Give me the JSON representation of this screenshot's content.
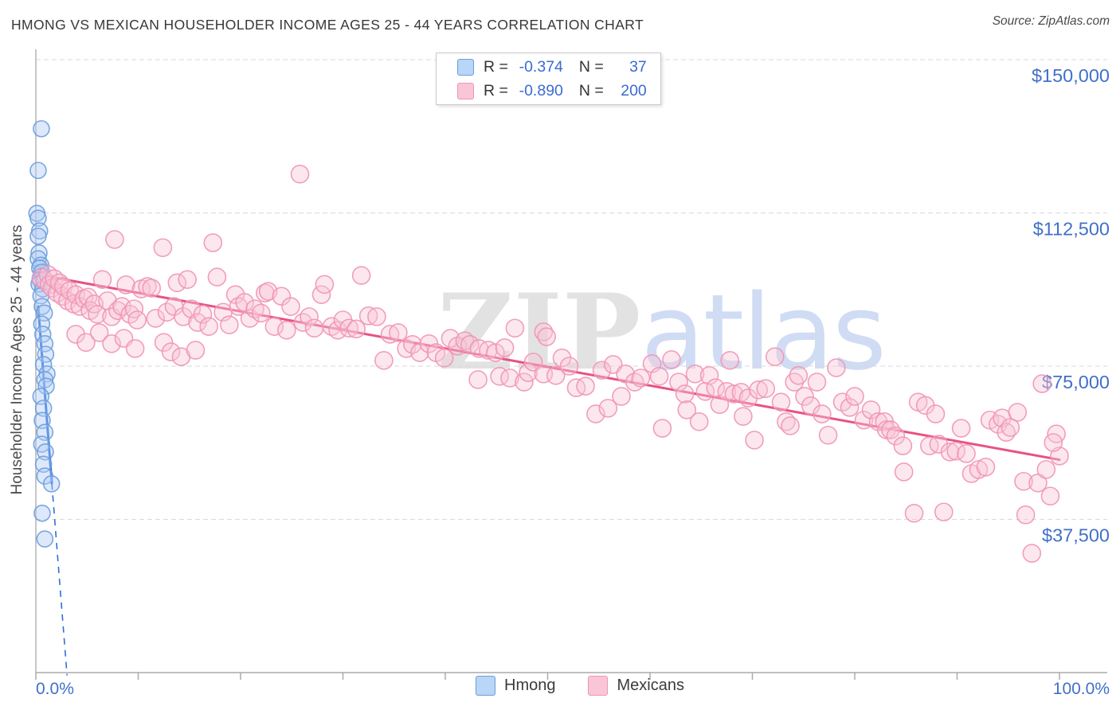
{
  "title": "HMONG VS MEXICAN HOUSEHOLDER INCOME AGES 25 - 44 YEARS CORRELATION CHART",
  "source": "Source: ZipAtlas.com",
  "watermark": {
    "zip": "ZIP",
    "atlas": "atlas"
  },
  "y_axis_title": "Householder Income Ages 25 - 44 years",
  "legend_box": {
    "rows": [
      {
        "series": "Hmong",
        "r_label": "R =",
        "r_value": "-0.374",
        "n_label": "N =",
        "n_value": "37"
      },
      {
        "series": "Mexicans",
        "r_label": "R =",
        "r_value": "-0.890",
        "n_label": "N =",
        "n_value": "200"
      }
    ]
  },
  "bottom_legend": {
    "hmong_label": "Hmong",
    "mexicans_label": "Mexicans"
  },
  "colors": {
    "hmong_fill": "#aecbf5",
    "hmong_stroke": "#6b9ddb",
    "hmong_trend": "#2e6fd8",
    "mexican_fill": "#f7c6d6",
    "mexican_stroke": "#f193b5",
    "mexican_trend": "#e85380",
    "axis_label": "#4170ca",
    "grid": "#d9d9d9",
    "axis_line": "#aaaaaa",
    "text_dark": "#3b3b3b"
  },
  "chart_data": {
    "type": "scatter",
    "title": "HMONG VS MEXICAN HOUSEHOLDER INCOME AGES 25 - 44 YEARS CORRELATION CHART",
    "xlabel_left": "0.0%",
    "xlabel_right": "100.0%",
    "x_ticks_percent": [
      0,
      10,
      20,
      30,
      40,
      50,
      60,
      70,
      80,
      90,
      100
    ],
    "y_gridline_values": [
      150000,
      112500,
      75000,
      37500
    ],
    "y_gridline_labels": [
      "$150,000",
      "$112,500",
      "$75,000",
      "$37,500"
    ],
    "xlim": [
      0,
      104.7
    ],
    "ylim": [
      0,
      152000
    ],
    "grid": true,
    "legend_position": "top-center",
    "series": [
      {
        "name": "Hmong",
        "r": -0.374,
        "n": 37,
        "point_radius": 10,
        "trend": {
          "x1": 0.23,
          "y1": 89600,
          "x2": 1.56,
          "y2": 46300,
          "dash_extension": {
            "x": 3.05,
            "y": -700
          }
        },
        "points": [
          [
            0.54,
            133100
          ],
          [
            0.23,
            122900
          ],
          [
            0.1,
            112400
          ],
          [
            0.23,
            111200
          ],
          [
            0.37,
            108100
          ],
          [
            0.23,
            106800
          ],
          [
            0.31,
            102700
          ],
          [
            0.23,
            101300
          ],
          [
            0.49,
            99700
          ],
          [
            0.37,
            99000
          ],
          [
            0.57,
            98000
          ],
          [
            0.62,
            97000
          ],
          [
            0.41,
            96100
          ],
          [
            0.31,
            95100
          ],
          [
            0.68,
            93900
          ],
          [
            0.49,
            92200
          ],
          [
            0.62,
            89600
          ],
          [
            0.83,
            88000
          ],
          [
            0.57,
            85300
          ],
          [
            0.68,
            82800
          ],
          [
            0.88,
            80500
          ],
          [
            0.96,
            77900
          ],
          [
            0.75,
            75400
          ],
          [
            1.09,
            73100
          ],
          [
            0.88,
            71700
          ],
          [
            1.01,
            70100
          ],
          [
            0.49,
            67600
          ],
          [
            0.75,
            64700
          ],
          [
            0.62,
            61700
          ],
          [
            0.88,
            58800
          ],
          [
            0.57,
            55900
          ],
          [
            0.93,
            54000
          ],
          [
            0.75,
            51000
          ],
          [
            0.88,
            48100
          ],
          [
            1.53,
            46200
          ],
          [
            0.62,
            39000
          ],
          [
            0.88,
            32700
          ]
        ]
      },
      {
        "name": "Mexicans",
        "r": -0.89,
        "n": 200,
        "point_radius": 11,
        "trend": {
          "x1": 0.16,
          "y1": 97400,
          "x2": 100.0,
          "y2": 52100
        },
        "points": [
          [
            0.5,
            96600
          ],
          [
            0.9,
            96000
          ],
          [
            1.2,
            97400
          ],
          [
            1.3,
            94900
          ],
          [
            1.6,
            94100
          ],
          [
            1.8,
            96400
          ],
          [
            2.1,
            92900
          ],
          [
            2.3,
            95400
          ],
          [
            2.6,
            92100
          ],
          [
            2.7,
            94500
          ],
          [
            3.1,
            91000
          ],
          [
            3.3,
            93500
          ],
          [
            3.7,
            90200
          ],
          [
            3.9,
            92500
          ],
          [
            4.3,
            89600
          ],
          [
            4.7,
            91500
          ],
          [
            5.1,
            91900
          ],
          [
            5.3,
            88600
          ],
          [
            5.7,
            90200
          ],
          [
            6.0,
            87700
          ],
          [
            6.5,
            96200
          ],
          [
            7.0,
            91000
          ],
          [
            7.4,
            87100
          ],
          [
            7.7,
            106000
          ],
          [
            8.0,
            88600
          ],
          [
            8.4,
            89600
          ],
          [
            8.8,
            94900
          ],
          [
            9.2,
            87700
          ],
          [
            9.6,
            89000
          ],
          [
            9.9,
            86300
          ],
          [
            10.3,
            93900
          ],
          [
            10.9,
            94500
          ],
          [
            11.3,
            94100
          ],
          [
            11.7,
            86700
          ],
          [
            12.4,
            104000
          ],
          [
            12.8,
            88200
          ],
          [
            13.5,
            89600
          ],
          [
            13.8,
            95400
          ],
          [
            14.4,
            87100
          ],
          [
            14.8,
            96200
          ],
          [
            15.2,
            89000
          ],
          [
            15.8,
            85700
          ],
          [
            16.3,
            87700
          ],
          [
            16.9,
            84700
          ],
          [
            17.3,
            105200
          ],
          [
            17.7,
            96800
          ],
          [
            18.3,
            88200
          ],
          [
            18.9,
            85100
          ],
          [
            19.5,
            92500
          ],
          [
            19.8,
            89600
          ],
          [
            20.4,
            90600
          ],
          [
            20.9,
            86700
          ],
          [
            21.4,
            89000
          ],
          [
            22.0,
            88000
          ],
          [
            22.4,
            92900
          ],
          [
            22.7,
            93300
          ],
          [
            23.3,
            84700
          ],
          [
            24.0,
            92100
          ],
          [
            24.5,
            83800
          ],
          [
            24.9,
            89600
          ],
          [
            25.8,
            122000
          ],
          [
            26.1,
            85700
          ],
          [
            26.7,
            87100
          ],
          [
            27.2,
            84300
          ],
          [
            27.9,
            92500
          ],
          [
            28.2,
            95000
          ],
          [
            28.9,
            84700
          ],
          [
            29.5,
            83800
          ],
          [
            30.0,
            86300
          ],
          [
            30.6,
            84300
          ],
          [
            31.3,
            84100
          ],
          [
            31.8,
            97200
          ],
          [
            32.5,
            87300
          ],
          [
            33.3,
            87100
          ],
          [
            34.0,
            76400
          ],
          [
            34.6,
            82800
          ],
          [
            35.4,
            83200
          ],
          [
            36.2,
            79300
          ],
          [
            36.8,
            80300
          ],
          [
            37.5,
            78300
          ],
          [
            38.4,
            80500
          ],
          [
            39.1,
            78300
          ],
          [
            39.9,
            77000
          ],
          [
            40.5,
            81800
          ],
          [
            41.2,
            79900
          ],
          [
            41.9,
            81200
          ],
          [
            42.4,
            80300
          ],
          [
            43.2,
            71700
          ],
          [
            43.3,
            79300
          ],
          [
            44.2,
            78900
          ],
          [
            44.9,
            78300
          ],
          [
            45.3,
            72500
          ],
          [
            45.8,
            79500
          ],
          [
            46.3,
            72100
          ],
          [
            46.8,
            84300
          ],
          [
            47.7,
            71100
          ],
          [
            48.1,
            73400
          ],
          [
            48.6,
            76000
          ],
          [
            49.6,
            83400
          ],
          [
            49.9,
            82200
          ],
          [
            49.6,
            73100
          ],
          [
            50.8,
            72700
          ],
          [
            51.4,
            77000
          ],
          [
            52.1,
            75000
          ],
          [
            52.8,
            69700
          ],
          [
            53.7,
            70100
          ],
          [
            54.7,
            63300
          ],
          [
            55.3,
            74000
          ],
          [
            55.9,
            64700
          ],
          [
            56.4,
            75400
          ],
          [
            57.2,
            67600
          ],
          [
            57.6,
            73100
          ],
          [
            58.5,
            71100
          ],
          [
            59.1,
            72100
          ],
          [
            60.2,
            75600
          ],
          [
            60.9,
            72500
          ],
          [
            61.2,
            59800
          ],
          [
            62.1,
            76600
          ],
          [
            62.8,
            71100
          ],
          [
            63.4,
            68200
          ],
          [
            63.6,
            64300
          ],
          [
            64.4,
            73100
          ],
          [
            64.8,
            61400
          ],
          [
            65.4,
            68800
          ],
          [
            65.8,
            72700
          ],
          [
            66.4,
            69700
          ],
          [
            66.8,
            65600
          ],
          [
            67.5,
            68800
          ],
          [
            67.8,
            76400
          ],
          [
            68.2,
            68200
          ],
          [
            68.9,
            68600
          ],
          [
            69.1,
            62700
          ],
          [
            69.6,
            67200
          ],
          [
            70.2,
            56900
          ],
          [
            70.6,
            69200
          ],
          [
            71.3,
            69500
          ],
          [
            72.2,
            77300
          ],
          [
            72.8,
            66200
          ],
          [
            73.3,
            61400
          ],
          [
            73.7,
            60400
          ],
          [
            74.1,
            71100
          ],
          [
            74.5,
            72700
          ],
          [
            75.1,
            67600
          ],
          [
            75.7,
            65300
          ],
          [
            76.3,
            71100
          ],
          [
            76.8,
            63300
          ],
          [
            77.4,
            58100
          ],
          [
            78.2,
            74600
          ],
          [
            78.8,
            66200
          ],
          [
            79.5,
            64900
          ],
          [
            80.0,
            67600
          ],
          [
            80.9,
            61800
          ],
          [
            81.6,
            64300
          ],
          [
            82.3,
            61400
          ],
          [
            82.9,
            61400
          ],
          [
            83.1,
            59400
          ],
          [
            83.5,
            59400
          ],
          [
            84.0,
            57900
          ],
          [
            84.7,
            55500
          ],
          [
            84.8,
            49100
          ],
          [
            85.8,
            39000
          ],
          [
            86.2,
            66200
          ],
          [
            86.9,
            65400
          ],
          [
            87.3,
            55500
          ],
          [
            87.9,
            63300
          ],
          [
            88.2,
            55900
          ],
          [
            88.7,
            39300
          ],
          [
            89.3,
            54000
          ],
          [
            89.9,
            54200
          ],
          [
            90.4,
            59800
          ],
          [
            90.9,
            53600
          ],
          [
            91.4,
            48700
          ],
          [
            92.1,
            49700
          ],
          [
            92.8,
            50300
          ],
          [
            93.2,
            61800
          ],
          [
            94.0,
            60800
          ],
          [
            94.4,
            62300
          ],
          [
            94.8,
            58800
          ],
          [
            95.2,
            60000
          ],
          [
            95.9,
            63700
          ],
          [
            96.5,
            46800
          ],
          [
            96.7,
            38600
          ],
          [
            97.3,
            29200
          ],
          [
            97.9,
            46400
          ],
          [
            98.3,
            70700
          ],
          [
            98.7,
            49700
          ],
          [
            99.1,
            43200
          ],
          [
            100.0,
            53000
          ],
          [
            99.7,
            58400
          ],
          [
            99.4,
            56300
          ],
          [
            3.9,
            82800
          ],
          [
            4.9,
            80800
          ],
          [
            6.2,
            83200
          ],
          [
            7.4,
            80500
          ],
          [
            8.6,
            81800
          ],
          [
            9.7,
            79300
          ],
          [
            12.5,
            80800
          ],
          [
            13.2,
            78500
          ],
          [
            14.2,
            77300
          ],
          [
            15.6,
            78900
          ]
        ]
      }
    ]
  }
}
